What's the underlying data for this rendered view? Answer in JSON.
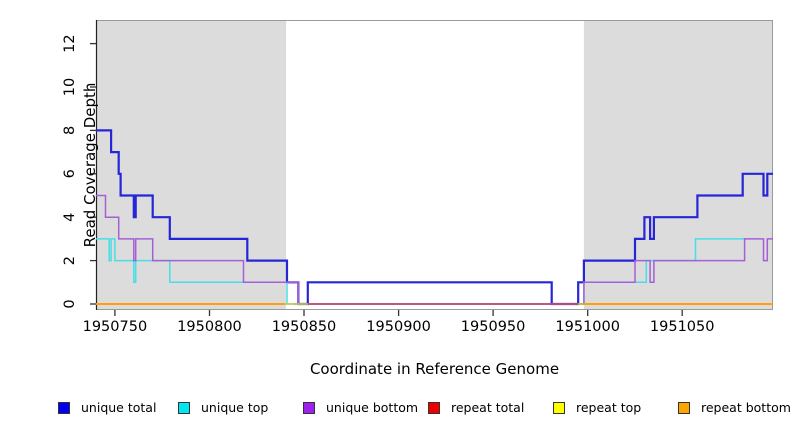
{
  "chart_data": {
    "type": "line",
    "subtype": "step-coverage",
    "title": "",
    "xlabel": "Coordinate in Reference Genome",
    "ylabel": "Read Coverage Depth",
    "x_range": [
      1950740,
      1951098
    ],
    "y_range": [
      0,
      13.1
    ],
    "x_ticks": [
      1950750,
      1950800,
      1950850,
      1950900,
      1950950,
      1951000,
      1951050
    ],
    "y_ticks": [
      0,
      2,
      4,
      6,
      8,
      10,
      12
    ],
    "grid": "off",
    "legend_position": "bottom",
    "shaded_regions": [
      {
        "x0": 1950740,
        "x1": 1950840.5,
        "color": "#dcdcdc"
      },
      {
        "x0": 1950998,
        "x1": 1951098,
        "color": "#dcdcdc"
      }
    ],
    "series": [
      {
        "name": "unique total",
        "color": "#2626d8",
        "width": 2.2,
        "segments": [
          [
            [
              1950740,
              8
            ],
            [
              1950748,
              7
            ],
            [
              1950752,
              6
            ],
            [
              1950753,
              5
            ],
            [
              1950760,
              4
            ],
            [
              1950761,
              5
            ],
            [
              1950770,
              4
            ],
            [
              1950779,
              3
            ],
            [
              1950820,
              2
            ],
            [
              1950841,
              1
            ],
            [
              1950847,
              0
            ],
            [
              1950852,
              1
            ],
            [
              1950981,
              0
            ],
            [
              1950995,
              1
            ],
            [
              1950998,
              2
            ],
            [
              1951025,
              3
            ],
            [
              1951030,
              4
            ],
            [
              1951033,
              3
            ],
            [
              1951035,
              4
            ],
            [
              1951058,
              5
            ],
            [
              1951082,
              6
            ],
            [
              1951093,
              5
            ],
            [
              1951095,
              6
            ],
            [
              1951098,
              6
            ]
          ]
        ]
      },
      {
        "name": "unique top",
        "color": "#49dde4",
        "width": 1.5,
        "segments": [
          [
            [
              1950740,
              3
            ],
            [
              1950747,
              2
            ],
            [
              1950748,
              3
            ],
            [
              1950750,
              2
            ],
            [
              1950760,
              1
            ],
            [
              1950761,
              2
            ],
            [
              1950779,
              1
            ],
            [
              1950841,
              0
            ],
            [
              1950998,
              1
            ],
            [
              1951031,
              2
            ],
            [
              1951057,
              3
            ],
            [
              1951083,
              3
            ]
          ]
        ]
      },
      {
        "name": "unique bottom",
        "color": "#a55fd6",
        "width": 1.5,
        "segments": [
          [
            [
              1950740,
              5
            ],
            [
              1950745,
              4
            ],
            [
              1950752,
              3
            ],
            [
              1950760,
              2
            ],
            [
              1950761,
              3
            ],
            [
              1950770,
              2
            ],
            [
              1950818,
              1
            ],
            [
              1950847,
              0
            ],
            [
              1950998,
              1
            ],
            [
              1951025,
              2
            ],
            [
              1951033,
              1
            ],
            [
              1951035,
              2
            ],
            [
              1951083,
              3
            ],
            [
              1951093,
              2
            ],
            [
              1951095,
              3
            ],
            [
              1951098,
              3
            ]
          ]
        ]
      },
      {
        "name": "repeat total",
        "color": "#cc3d5c",
        "width": 1.5,
        "segments": [
          [
            [
              1950845,
              0
            ],
            [
              1950998,
              0
            ]
          ]
        ]
      },
      {
        "name": "repeat top",
        "color": "#b6d242",
        "width": 1.6,
        "segments": [
          [
            [
              1950740,
              0
            ],
            [
              1950852,
              0
            ]
          ],
          [
            [
              1950995,
              0
            ],
            [
              1950998,
              0
            ]
          ]
        ]
      },
      {
        "name": "repeat bottom",
        "color": "#ff9e0e",
        "width": 2.0,
        "segments": [
          [
            [
              1950740,
              0
            ],
            [
              1950840,
              0
            ]
          ],
          [
            [
              1950998,
              0
            ],
            [
              1951098,
              0
            ]
          ]
        ]
      }
    ],
    "legend": [
      {
        "label": "unique total",
        "color": "#0000ee"
      },
      {
        "label": "unique top",
        "color": "#00e5ee"
      },
      {
        "label": "unique bottom",
        "color": "#a020f0"
      },
      {
        "label": "repeat total",
        "color": "#ee0000"
      },
      {
        "label": "repeat top",
        "color": "#ffff00"
      },
      {
        "label": "repeat bottom",
        "color": "#ffa500"
      }
    ],
    "legend_x_positions": [
      58,
      178,
      303,
      428,
      553,
      678
    ],
    "axis_color": "#333333",
    "box_color": "#9a9a9a"
  }
}
